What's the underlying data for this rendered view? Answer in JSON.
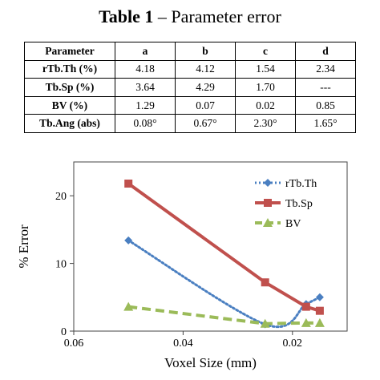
{
  "title": {
    "bold": "Table 1",
    "rest": " – Parameter error"
  },
  "table": {
    "headers": [
      "Parameter",
      "a",
      "b",
      "c",
      "d"
    ],
    "rows": [
      [
        "rTb.Th (%)",
        "4.18",
        "4.12",
        "1.54",
        "2.34"
      ],
      [
        "Tb.Sp (%)",
        "3.64",
        "4.29",
        "1.70",
        "---"
      ],
      [
        "BV (%)",
        "1.29",
        "0.07",
        "0.02",
        "0.85"
      ],
      [
        "Tb.Ang (abs)",
        "0.08°",
        "0.67°",
        "2.30°",
        "1.65°"
      ]
    ]
  },
  "chart_data": {
    "type": "line",
    "xlabel": "Voxel Size (mm)",
    "ylabel": "% Error",
    "xlim": [
      0.06,
      0.01
    ],
    "ylim": [
      0,
      25
    ],
    "x_reversed": true,
    "xticks": [
      "0.06",
      "0.04",
      "0.02"
    ],
    "yticks": [
      "0",
      "10",
      "20"
    ],
    "grid": false,
    "legend_position": "top-right",
    "series": [
      {
        "name": "rTb.Th",
        "color": "#4a7fc1",
        "style": "dotted",
        "marker": "diamond",
        "x": [
          0.05,
          0.025,
          0.0175,
          0.015
        ],
        "y": [
          13.4,
          1.0,
          4.0,
          5.0
        ]
      },
      {
        "name": "Tb.Sp",
        "color": "#c0504d",
        "style": "solid",
        "marker": "square",
        "x": [
          0.05,
          0.025,
          0.0175,
          0.015
        ],
        "y": [
          21.8,
          7.2,
          3.6,
          3.0
        ]
      },
      {
        "name": "BV",
        "color": "#9bbb59",
        "style": "dashed",
        "marker": "triangle",
        "x": [
          0.05,
          0.025,
          0.0175,
          0.015
        ],
        "y": [
          3.6,
          1.1,
          1.2,
          1.2
        ]
      }
    ]
  }
}
